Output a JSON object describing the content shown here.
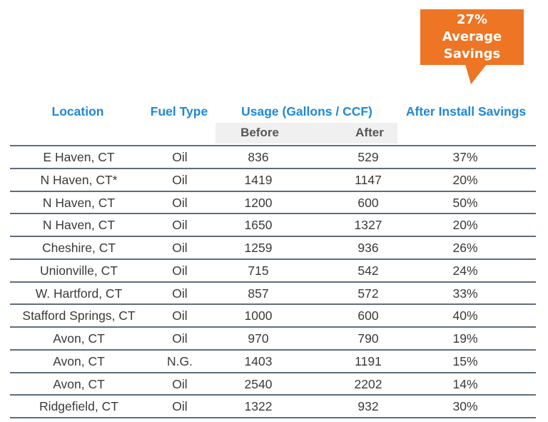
{
  "callout": {
    "text": "27% Average Savings",
    "color": "#ee7524"
  },
  "headers": {
    "location": "Location",
    "fuel_type": "Fuel Type",
    "usage": "Usage (Gallons / CCF)",
    "savings": "After Install Savings",
    "before": "Before",
    "after": "After",
    "header_color": "#1e88d8"
  },
  "rows": [
    {
      "location": "E Haven, CT",
      "fuel": "Oil",
      "before": "836",
      "after": "529",
      "savings": "37%"
    },
    {
      "location": "N Haven, CT*",
      "fuel": "Oil",
      "before": "1419",
      "after": "1147",
      "savings": "20%"
    },
    {
      "location": "N Haven, CT",
      "fuel": "Oil",
      "before": "1200",
      "after": "600",
      "savings": "50%"
    },
    {
      "location": "N Haven, CT",
      "fuel": "Oil",
      "before": "1650",
      "after": "1327",
      "savings": "20%"
    },
    {
      "location": "Cheshire, CT",
      "fuel": "Oil",
      "before": "1259",
      "after": "936",
      "savings": "26%"
    },
    {
      "location": "Unionville, CT",
      "fuel": "Oil",
      "before": "715",
      "after": "542",
      "savings": "24%"
    },
    {
      "location": "W. Hartford, CT",
      "fuel": "Oil",
      "before": "857",
      "after": "572",
      "savings": "33%"
    },
    {
      "location": "Stafford Springs, CT",
      "fuel": "Oil",
      "before": "1000",
      "after": "600",
      "savings": "40%"
    },
    {
      "location": "Avon, CT",
      "fuel": "Oil",
      "before": "970",
      "after": "790",
      "savings": "19%"
    },
    {
      "location": "Avon, CT",
      "fuel": "N.G.",
      "before": "1403",
      "after": "1191",
      "savings": "15%"
    },
    {
      "location": "Avon, CT",
      "fuel": "Oil",
      "before": "2540",
      "after": "2202",
      "savings": "14%"
    },
    {
      "location": "Ridgefield, CT",
      "fuel": "Oil",
      "before": "1322",
      "after": "932",
      "savings": "30%"
    }
  ]
}
